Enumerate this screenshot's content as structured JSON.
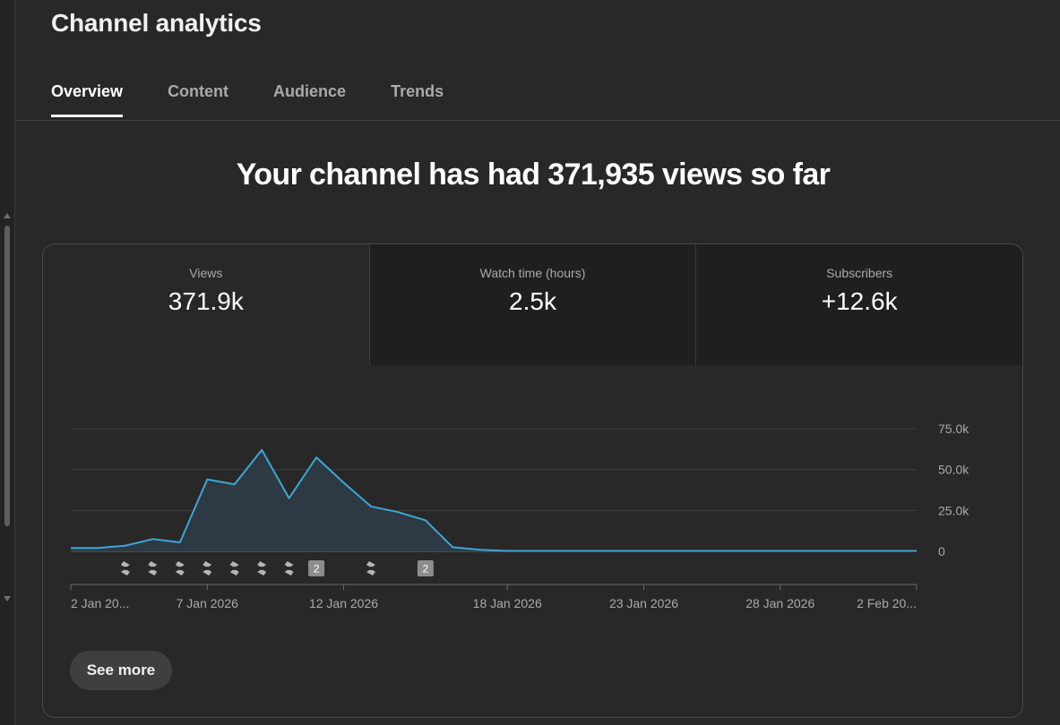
{
  "page": {
    "title": "Channel analytics",
    "tabs": [
      {
        "label": "Overview",
        "active": true
      },
      {
        "label": "Content",
        "active": false
      },
      {
        "label": "Audience",
        "active": false
      },
      {
        "label": "Trends",
        "active": false
      }
    ],
    "headline": "Your channel has had 371,935 views so far"
  },
  "metrics": [
    {
      "label": "Views",
      "value": "371.9k",
      "active": true
    },
    {
      "label": "Watch time (hours)",
      "value": "2.5k",
      "active": false
    },
    {
      "label": "Subscribers",
      "value": "+12.6k",
      "active": false
    }
  ],
  "see_more_label": "See more",
  "colors": {
    "line": "#3ea6d6",
    "area": "#2d3a44",
    "background": "#282828",
    "grid": "#3e3e3e"
  },
  "chart_data": {
    "type": "area",
    "x_tick_labels": [
      "2 Jan 20...",
      "7 Jan 2026",
      "12 Jan 2026",
      "18 Jan 2026",
      "23 Jan 2026",
      "28 Jan 2026",
      "2 Feb 20..."
    ],
    "x_tick_days": [
      2,
      7,
      12,
      18,
      23,
      28,
      33
    ],
    "y_tick_labels": [
      "75.0k",
      "50.0k",
      "25.0k",
      "0"
    ],
    "y_tick_values": [
      75000,
      50000,
      25000,
      0
    ],
    "ylim": [
      0,
      75000
    ],
    "grid": true,
    "series": [
      {
        "x": [
          "2 Jan 2026",
          "3 Jan 2026",
          "4 Jan 2026",
          "5 Jan 2026",
          "6 Jan 2026",
          "7 Jan 2026",
          "8 Jan 2026",
          "9 Jan 2026",
          "10 Jan 2026",
          "11 Jan 2026",
          "12 Jan 2026",
          "13 Jan 2026",
          "14 Jan 2026",
          "15 Jan 2026",
          "16 Jan 2026",
          "17 Jan 2026",
          "18 Jan 2026",
          "19 Jan 2026",
          "20 Jan 2026",
          "21 Jan 2026",
          "22 Jan 2026",
          "23 Jan 2026",
          "24 Jan 2026",
          "25 Jan 2026",
          "26 Jan 2026",
          "27 Jan 2026",
          "28 Jan 2026",
          "29 Jan 2026",
          "30 Jan 2026",
          "31 Jan 2026",
          "1 Feb 2026",
          "2 Feb 2026"
        ],
        "days": [
          2,
          3,
          4,
          5,
          6,
          7,
          8,
          9,
          10,
          11,
          12,
          13,
          14,
          15,
          16,
          17,
          18,
          19,
          20,
          21,
          22,
          23,
          24,
          25,
          26,
          27,
          28,
          29,
          30,
          31,
          32,
          33
        ],
        "values": [
          2000,
          2000,
          3500,
          7500,
          5500,
          44000,
          41000,
          62000,
          32500,
          57500,
          42000,
          27500,
          24000,
          19000,
          2500,
          1000,
          300,
          250,
          250,
          250,
          250,
          250,
          250,
          250,
          250,
          250,
          250,
          250,
          250,
          250,
          250,
          250
        ]
      }
    ],
    "markers": [
      {
        "day": 4,
        "type": "shorts-icon"
      },
      {
        "day": 5,
        "type": "shorts-icon"
      },
      {
        "day": 6,
        "type": "shorts-icon"
      },
      {
        "day": 7,
        "type": "shorts-icon"
      },
      {
        "day": 8,
        "type": "shorts-icon"
      },
      {
        "day": 9,
        "type": "shorts-icon"
      },
      {
        "day": 10,
        "type": "shorts-icon"
      },
      {
        "day": 11,
        "type": "count-badge",
        "label": "2"
      },
      {
        "day": 13,
        "type": "shorts-icon"
      },
      {
        "day": 15,
        "type": "count-badge",
        "label": "2"
      }
    ]
  }
}
